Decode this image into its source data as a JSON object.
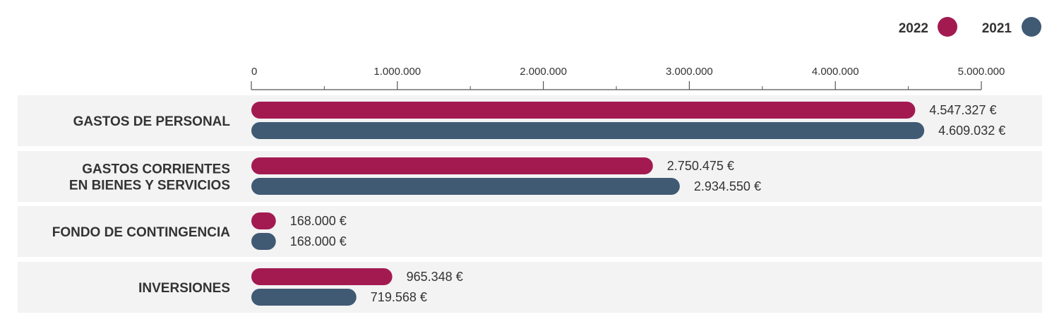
{
  "chart_data": {
    "type": "bar",
    "orientation": "horizontal",
    "title": "",
    "xlabel": "",
    "ylabel": "",
    "xlim": [
      0,
      5000000
    ],
    "ticks": [
      0,
      1000000,
      2000000,
      3000000,
      4000000,
      5000000
    ],
    "tick_labels": [
      "0",
      "1.000.000",
      "2.000.000",
      "3.000.000",
      "4.000.000",
      "5.000.000"
    ],
    "legend_position": "top-right",
    "categories": [
      {
        "lines": [
          "GASTOS DE PERSONAL"
        ]
      },
      {
        "lines": [
          "GASTOS CORRIENTES",
          "EN BIENES Y SERVICIOS"
        ]
      },
      {
        "lines": [
          "FONDO DE CONTINGENCIA"
        ]
      },
      {
        "lines": [
          "INVERSIONES"
        ]
      }
    ],
    "series": [
      {
        "name": "2022",
        "color": "#A31A51",
        "values": [
          4547327,
          2750475,
          168000,
          965348
        ],
        "value_labels": [
          "4.547.327 €",
          "2.750.475 €",
          "168.000 €",
          "965.348 €"
        ]
      },
      {
        "name": "2021",
        "color": "#405A74",
        "values": [
          4609032,
          2934550,
          168000,
          719568
        ],
        "value_labels": [
          "4.609.032 €",
          "2.934.550 €",
          "168.000 €",
          "719.568 €"
        ]
      }
    ],
    "legend_order": [
      0,
      1
    ],
    "row_background": "#F3F3F3",
    "axis_color": "#555555"
  }
}
